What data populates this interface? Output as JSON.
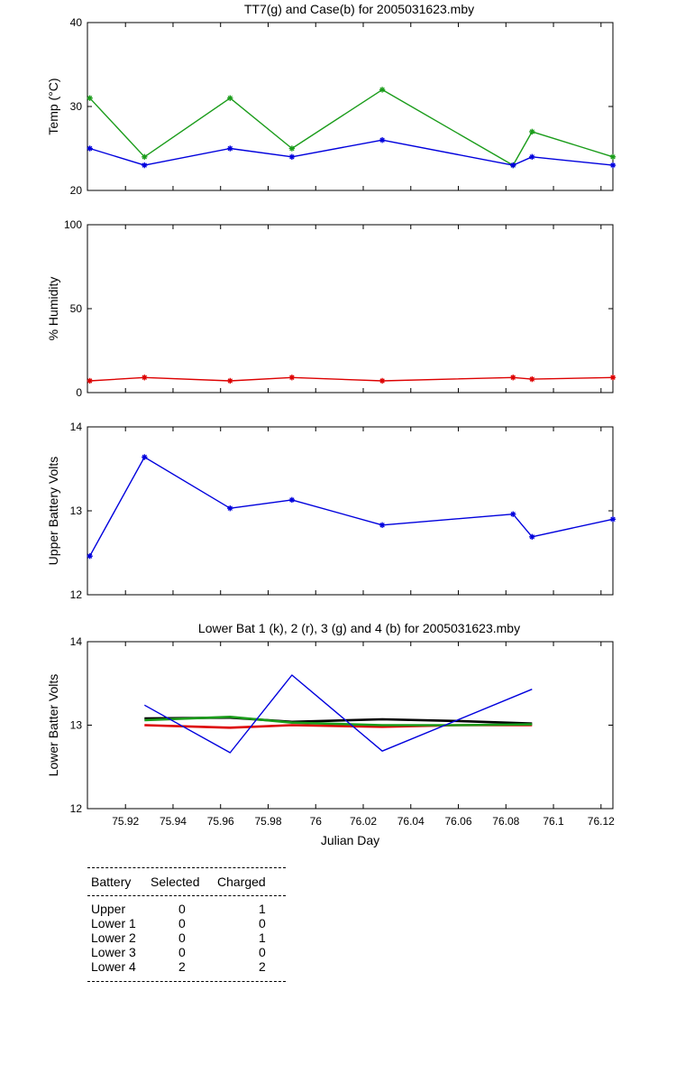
{
  "chart_data": [
    {
      "type": "line",
      "title": "TT7(g) and Case(b) for 2005031623.mby",
      "xlabel": "",
      "ylabel": "Temp  (°C)",
      "xlim": [
        75.904,
        76.125
      ],
      "ylim": [
        20,
        40
      ],
      "yticks": [
        20,
        30,
        40
      ],
      "grid": false,
      "series": [
        {
          "color": "#1a9c1a",
          "marker": "*",
          "x": [
            75.905,
            75.928,
            75.964,
            75.99,
            76.028,
            76.083,
            76.091,
            76.125
          ],
          "y": [
            31,
            24,
            31,
            25,
            32,
            23,
            27,
            24
          ]
        },
        {
          "color": "#0000dd",
          "marker": "*",
          "x": [
            75.905,
            75.928,
            75.964,
            75.99,
            76.028,
            76.083,
            76.091,
            76.125
          ],
          "y": [
            25,
            23,
            25,
            24,
            26,
            23,
            24,
            23
          ]
        }
      ]
    },
    {
      "type": "line",
      "title": "",
      "xlabel": "",
      "ylabel": "% Humidity",
      "xlim": [
        75.904,
        76.125
      ],
      "ylim": [
        0,
        100
      ],
      "yticks": [
        0,
        50,
        100
      ],
      "grid": false,
      "series": [
        {
          "color": "#dd0000",
          "marker": "*",
          "x": [
            75.905,
            75.928,
            75.964,
            75.99,
            76.028,
            76.083,
            76.091,
            76.125
          ],
          "y": [
            7,
            9,
            7,
            9,
            7,
            9,
            8,
            9
          ]
        }
      ]
    },
    {
      "type": "line",
      "title": "",
      "xlabel": "",
      "ylabel": "Upper Battery Volts",
      "xlim": [
        75.904,
        76.125
      ],
      "ylim": [
        12,
        14
      ],
      "yticks": [
        12,
        13,
        14
      ],
      "grid": false,
      "series": [
        {
          "color": "#0000dd",
          "marker": "*",
          "x": [
            75.905,
            75.928,
            75.964,
            75.99,
            76.028,
            76.083,
            76.091,
            76.125
          ],
          "y": [
            12.46,
            13.64,
            13.03,
            13.13,
            12.83,
            12.96,
            12.69,
            12.9
          ]
        }
      ]
    },
    {
      "type": "line",
      "title": "Lower Bat 1 (k), 2 (r), 3 (g) and 4 (b) for 2005031623.mby",
      "xlabel": "Julian Day",
      "ylabel": "Lower Batter Volts",
      "xlim": [
        75.904,
        76.125
      ],
      "ylim": [
        12,
        14
      ],
      "yticks": [
        12,
        13,
        14
      ],
      "xticks": [
        75.92,
        75.94,
        75.96,
        75.98,
        76,
        76.02,
        76.04,
        76.06,
        76.08,
        76.1,
        76.12
      ],
      "xtick_labels": [
        "75.92",
        "75.94",
        "75.96",
        "75.98",
        "76",
        "76.02",
        "76.04",
        "76.06",
        "76.08",
        "76.1",
        "76.12"
      ],
      "grid": false,
      "series": [
        {
          "color": "#000000",
          "x": [
            75.928,
            75.964,
            75.99,
            76.028,
            76.06,
            76.091
          ],
          "y": [
            13.08,
            13.09,
            13.04,
            13.07,
            13.05,
            13.02
          ]
        },
        {
          "color": "#dd0000",
          "x": [
            75.928,
            75.964,
            75.99,
            76.028,
            76.06,
            76.091
          ],
          "y": [
            13.0,
            12.97,
            13.0,
            12.98,
            13.0,
            13.0
          ]
        },
        {
          "color": "#1a9c1a",
          "x": [
            75.928,
            75.964,
            75.99,
            76.028,
            76.06,
            76.091
          ],
          "y": [
            13.06,
            13.1,
            13.03,
            13.0,
            13.0,
            13.01
          ]
        },
        {
          "color": "#0000dd",
          "x": [
            75.928,
            75.964,
            75.99,
            76.028,
            76.091
          ],
          "y": [
            13.24,
            12.67,
            13.6,
            12.69,
            13.43
          ]
        }
      ]
    }
  ],
  "battery_table": {
    "headers": [
      "Battery",
      "Selected",
      "Charged"
    ],
    "rows": [
      {
        "battery": "Upper",
        "selected": "0",
        "charged": "1"
      },
      {
        "battery": "Lower 1",
        "selected": "0",
        "charged": "0"
      },
      {
        "battery": "Lower 2",
        "selected": "0",
        "charged": "1"
      },
      {
        "battery": "Lower 3",
        "selected": "0",
        "charged": "0"
      },
      {
        "battery": "Lower 4",
        "selected": "2",
        "charged": "2"
      }
    ]
  }
}
